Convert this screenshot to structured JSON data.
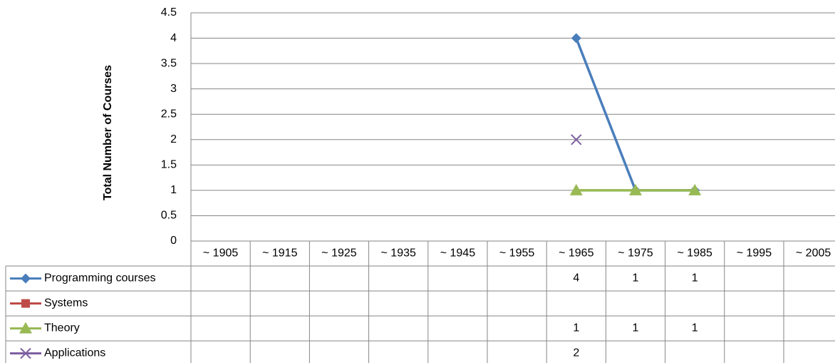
{
  "chart_data": {
    "type": "line",
    "y_label": "Total Number of Courses",
    "categories": [
      "~ 1905",
      "~ 1915",
      "~ 1925",
      "~ 1935",
      "~ 1945",
      "~ 1955",
      "~ 1965",
      "~ 1975",
      "~ 1985",
      "~ 1995",
      "~ 2005"
    ],
    "series": [
      {
        "name": "Programming courses",
        "color": "#4a7ebb",
        "marker": "diamond",
        "values": [
          null,
          null,
          null,
          null,
          null,
          null,
          4,
          1,
          1,
          null,
          null
        ]
      },
      {
        "name": "Systems",
        "color": "#be4b48",
        "marker": "square",
        "values": [
          null,
          null,
          null,
          null,
          null,
          null,
          null,
          null,
          null,
          null,
          null
        ]
      },
      {
        "name": "Theory",
        "color": "#98b954",
        "marker": "triangle",
        "values": [
          null,
          null,
          null,
          null,
          null,
          null,
          1,
          1,
          1,
          null,
          null
        ]
      },
      {
        "name": "Applications",
        "color": "#7d60a0",
        "marker": "x",
        "values": [
          null,
          null,
          null,
          null,
          null,
          null,
          2,
          null,
          null,
          null,
          null
        ]
      }
    ],
    "ylim": [
      0,
      4.5
    ],
    "yticks": [
      0,
      0.5,
      1,
      1.5,
      2,
      2.5,
      3,
      3.5,
      4,
      4.5
    ],
    "grid": true,
    "data_table": true
  }
}
